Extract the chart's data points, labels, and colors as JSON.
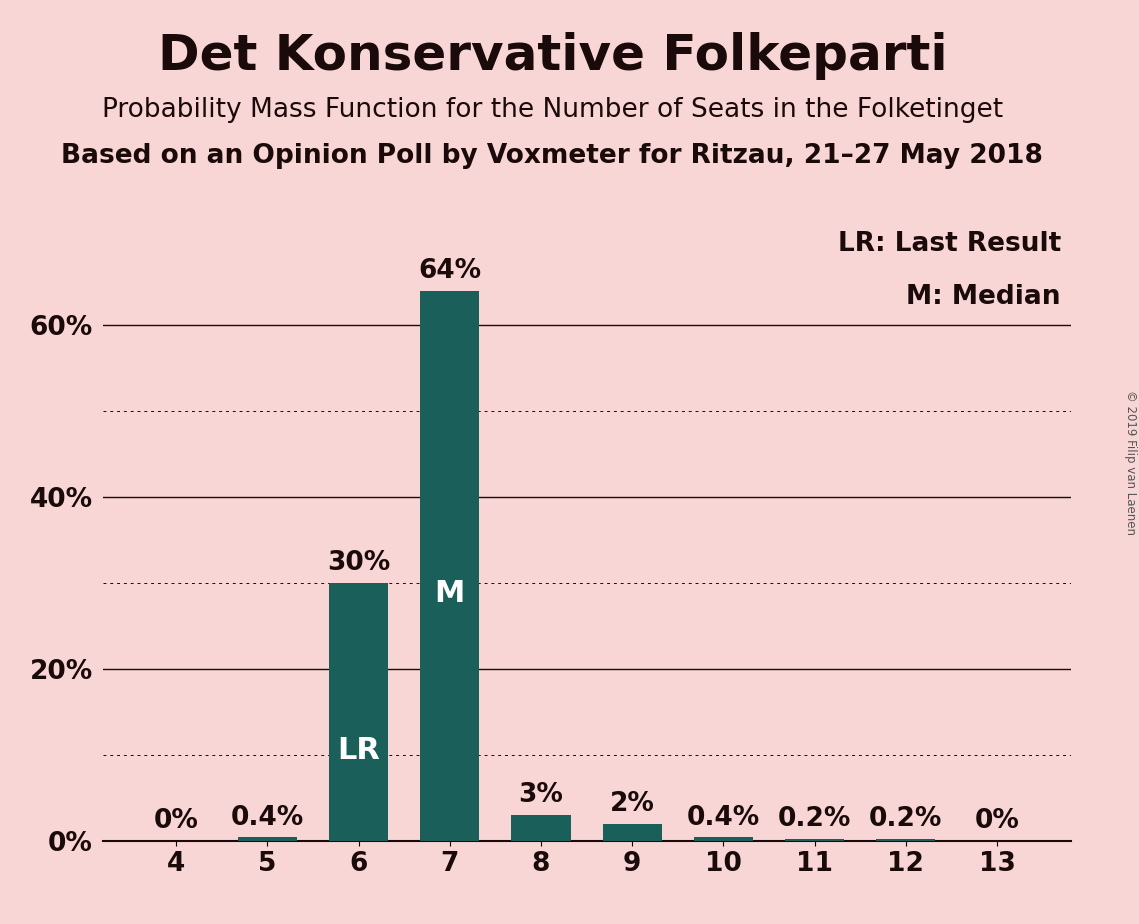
{
  "title": "Det Konservative Folkeparti",
  "subtitle1": "Probability Mass Function for the Number of Seats in the Folketinget",
  "subtitle2": "Based on an Opinion Poll by Voxmeter for Ritzau, 21–27 May 2018",
  "categories": [
    4,
    5,
    6,
    7,
    8,
    9,
    10,
    11,
    12,
    13
  ],
  "values": [
    0.0,
    0.4,
    30.0,
    64.0,
    3.0,
    2.0,
    0.4,
    0.2,
    0.2,
    0.0
  ],
  "labels": [
    "0%",
    "0.4%",
    "30%",
    "64%",
    "3%",
    "2%",
    "0.4%",
    "0.2%",
    "0.2%",
    "0%"
  ],
  "bar_color": "#1a5f5a",
  "background_color": "#f9d6d6",
  "text_color": "#1a0a0a",
  "title_fontsize": 36,
  "subtitle1_fontsize": 19,
  "subtitle2_fontsize": 19,
  "label_fontsize": 19,
  "tick_fontsize": 19,
  "lr_label_fontsize": 22,
  "median_label_fontsize": 22,
  "legend_fontsize": 19,
  "ylim": [
    0,
    72
  ],
  "lr_label": "LR",
  "median_label": "M",
  "legend_lr": "LR: Last Result",
  "legend_m": "M: Median",
  "copyright_text": "© 2019 Filip van Laenen",
  "lr_idx": 2,
  "median_idx": 3
}
